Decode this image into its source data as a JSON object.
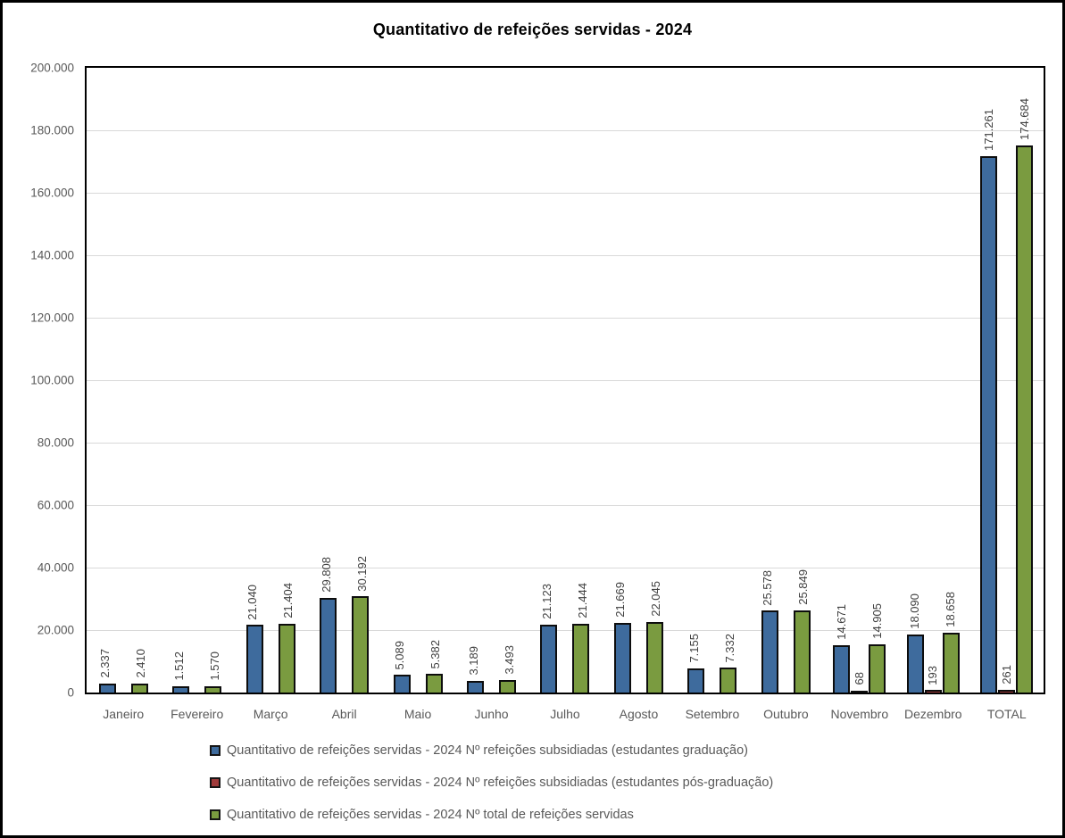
{
  "title": "Quantitativo de refeições servidas - 2024",
  "chart_data": {
    "type": "bar",
    "title": "Quantitativo de refeições servidas - 2024",
    "categories": [
      "Janeiro",
      "Fevereiro",
      "Março",
      "Abril",
      "Maio",
      "Junho",
      "Julho",
      "Agosto",
      "Setembro",
      "Outubro",
      "Novembro",
      "Dezembro",
      "TOTAL"
    ],
    "series": [
      {
        "name": "Quantitativo de refeições servidas - 2024 Nº refeições subsidiadas (estudantes graduação)",
        "color": "#3e6b9d",
        "values": [
          2337,
          1512,
          21040,
          29808,
          5089,
          3189,
          21123,
          21669,
          7155,
          25578,
          14671,
          18090,
          171261
        ],
        "labels": [
          "2.337",
          "1.512",
          "21.040",
          "29.808",
          "5.089",
          "3.189",
          "21.123",
          "21.669",
          "7.155",
          "25.578",
          "14.671",
          "18.090",
          "171.261"
        ]
      },
      {
        "name": "Quantitativo de refeições servidas - 2024 Nº refeições subsidiadas (estudantes pós-graduação)",
        "color": "#a03b3b",
        "values": [
          null,
          null,
          null,
          null,
          null,
          null,
          null,
          null,
          null,
          null,
          68,
          193,
          261
        ],
        "labels": [
          "",
          "",
          "",
          "",
          "",
          "",
          "",
          "",
          "",
          "",
          "68",
          "193",
          "261"
        ]
      },
      {
        "name": "Quantitativo de refeições servidas - 2024 Nº total de refeições servidas",
        "color": "#7a9b40",
        "values": [
          2410,
          1570,
          21404,
          30192,
          5382,
          3493,
          21444,
          22045,
          7332,
          25849,
          14905,
          18658,
          174684
        ],
        "labels": [
          "2.410",
          "1.570",
          "21.404",
          "30.192",
          "5.382",
          "3.493",
          "21.444",
          "22.045",
          "7.332",
          "25.849",
          "14.905",
          "18.658",
          "174.684"
        ]
      }
    ],
    "y_axis": {
      "min": 0,
      "max": 200000,
      "step": 20000,
      "tick_labels": [
        "200.000",
        "180.000",
        "160.000",
        "140.000",
        "120.000",
        "100.000",
        "80.000",
        "60.000",
        "40.000",
        "20.000",
        "0"
      ]
    },
    "grid": true,
    "legend_position": "bottom",
    "colors": {
      "gridline": "#d9d9d9",
      "axis_text": "#595959",
      "data_label_text": "#3f3f3f",
      "bar_border": "#0d0d0d",
      "plot_border": "#000000"
    }
  }
}
